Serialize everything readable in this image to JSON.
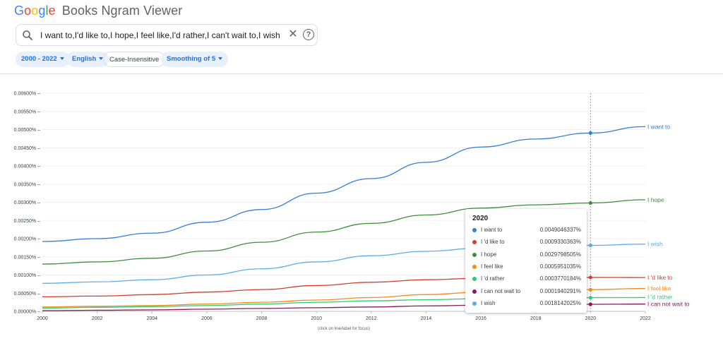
{
  "app": {
    "logo_google": "Google",
    "logo_title": "Books Ngram Viewer"
  },
  "search": {
    "query": "I want to,I'd like to,I hope,I feel like,I'd rather,I can't wait to,I wish"
  },
  "chips": {
    "years": "2000 - 2022",
    "language": "English",
    "case": "Case-Insensitive",
    "smoothing": "Smoothing of 5"
  },
  "colors": {
    "google_blue": "#4285F4",
    "google_red": "#EA4335",
    "google_yellow": "#FBBC05",
    "google_green": "#34A853"
  },
  "footer_note": "(click on line/label for focus)",
  "tooltip": {
    "year": "2020",
    "rows": [
      {
        "name": "I want to",
        "value": "0.0049046337%",
        "color": "#3a7bd5"
      },
      {
        "name": "I 'd like to",
        "value": "0.0009330363%",
        "color": "#d23f31"
      },
      {
        "name": "I hope",
        "value": "0.0029798505%",
        "color": "#3e8e3e"
      },
      {
        "name": "I feel like",
        "value": "0.0005951035%",
        "color": "#f08c1f"
      },
      {
        "name": "I 'd rather",
        "value": "0.0003770184%",
        "color": "#2ecc71"
      },
      {
        "name": "I can not wait to",
        "value": "0.0001940291%",
        "color": "#8b1a5a"
      },
      {
        "name": "I wish",
        "value": "0.0018142025%",
        "color": "#5dade2"
      }
    ]
  },
  "chart_data": {
    "type": "line",
    "x": [
      2000,
      2002,
      2004,
      2006,
      2008,
      2010,
      2012,
      2014,
      2016,
      2018,
      2020,
      2022
    ],
    "xlim": [
      2000,
      2022
    ],
    "ylim": [
      0,
      0.006
    ],
    "y_tick_labels": [
      "0.00000%",
      "0.00050%",
      "0.00100%",
      "0.00150%",
      "0.00200%",
      "0.00250%",
      "0.00300%",
      "0.00350%",
      "0.00400%",
      "0.00450%",
      "0.00500%",
      "0.00550%",
      "0.00600%"
    ],
    "y_tick_values": [
      0,
      0.0005,
      0.001,
      0.0015,
      0.002,
      0.0025,
      0.003,
      0.0035,
      0.004,
      0.0045,
      0.005,
      0.0055,
      0.006
    ],
    "x_tick_labels": [
      "2000",
      "2002",
      "2004",
      "2006",
      "2008",
      "2010",
      "2012",
      "2014",
      "2016",
      "2018",
      "2020",
      "2022"
    ],
    "highlight_x": 2020,
    "grid": true,
    "series": [
      {
        "name": "I want to",
        "color": "#3a7bd5",
        "values": [
          0.00192,
          0.002,
          0.00215,
          0.00245,
          0.0028,
          0.00325,
          0.00365,
          0.0041,
          0.00452,
          0.00474,
          0.0049046,
          0.00508
        ]
      },
      {
        "name": "I hope",
        "color": "#3e8e3e",
        "values": [
          0.0013,
          0.00136,
          0.00146,
          0.00166,
          0.0019,
          0.00218,
          0.00242,
          0.00265,
          0.00284,
          0.00293,
          0.0029799,
          0.00307
        ]
      },
      {
        "name": "I wish",
        "color": "#5dade2",
        "values": [
          0.00077,
          0.00081,
          0.00087,
          0.001,
          0.00117,
          0.00136,
          0.00153,
          0.00165,
          0.00174,
          0.0018,
          0.0018142,
          0.00185
        ]
      },
      {
        "name": "I 'd like to",
        "color": "#d23f31",
        "values": [
          0.0004,
          0.00042,
          0.00046,
          0.00053,
          0.0006,
          0.00071,
          0.0008,
          0.00087,
          0.00091,
          0.00093,
          0.000933,
          0.00093
        ]
      },
      {
        "name": "I feel like",
        "color": "#f08c1f",
        "values": [
          0.00012,
          0.00014,
          0.00016,
          0.0002,
          0.00025,
          0.00031,
          0.00038,
          0.00046,
          0.00053,
          0.00058,
          0.0005951,
          0.00063
        ]
      },
      {
        "name": "I 'd rather",
        "color": "#2ecc71",
        "values": [
          9e-05,
          0.00011,
          0.00013,
          0.00016,
          0.0002,
          0.00025,
          0.00029,
          0.00032,
          0.00035,
          0.00037,
          0.000377,
          0.00038
        ]
      },
      {
        "name": "I can not wait to",
        "color": "#8b1a5a",
        "values": [
          2e-05,
          3e-05,
          4e-05,
          6e-05,
          8e-05,
          0.0001,
          0.00012,
          0.00015,
          0.00017,
          0.00019,
          0.000194,
          0.0002
        ]
      }
    ],
    "end_labels": [
      {
        "text": "I want to",
        "color": "#3a7bd5",
        "value": 0.00508
      },
      {
        "text": "I hope",
        "color": "#3e8e3e",
        "value": 0.00307
      },
      {
        "text": "I wish",
        "color": "#5dade2",
        "value": 0.00185
      },
      {
        "text": "I 'd like to",
        "color": "#d23f31",
        "value": 0.00093
      },
      {
        "text": "I feel like",
        "color": "#f08c1f",
        "value": 0.00063
      },
      {
        "text": "I 'd rather",
        "color": "#2ecc71",
        "value": 0.0004
      },
      {
        "text": "I can not wait to",
        "color": "#8b1a5a",
        "value": 0.0002
      }
    ]
  }
}
